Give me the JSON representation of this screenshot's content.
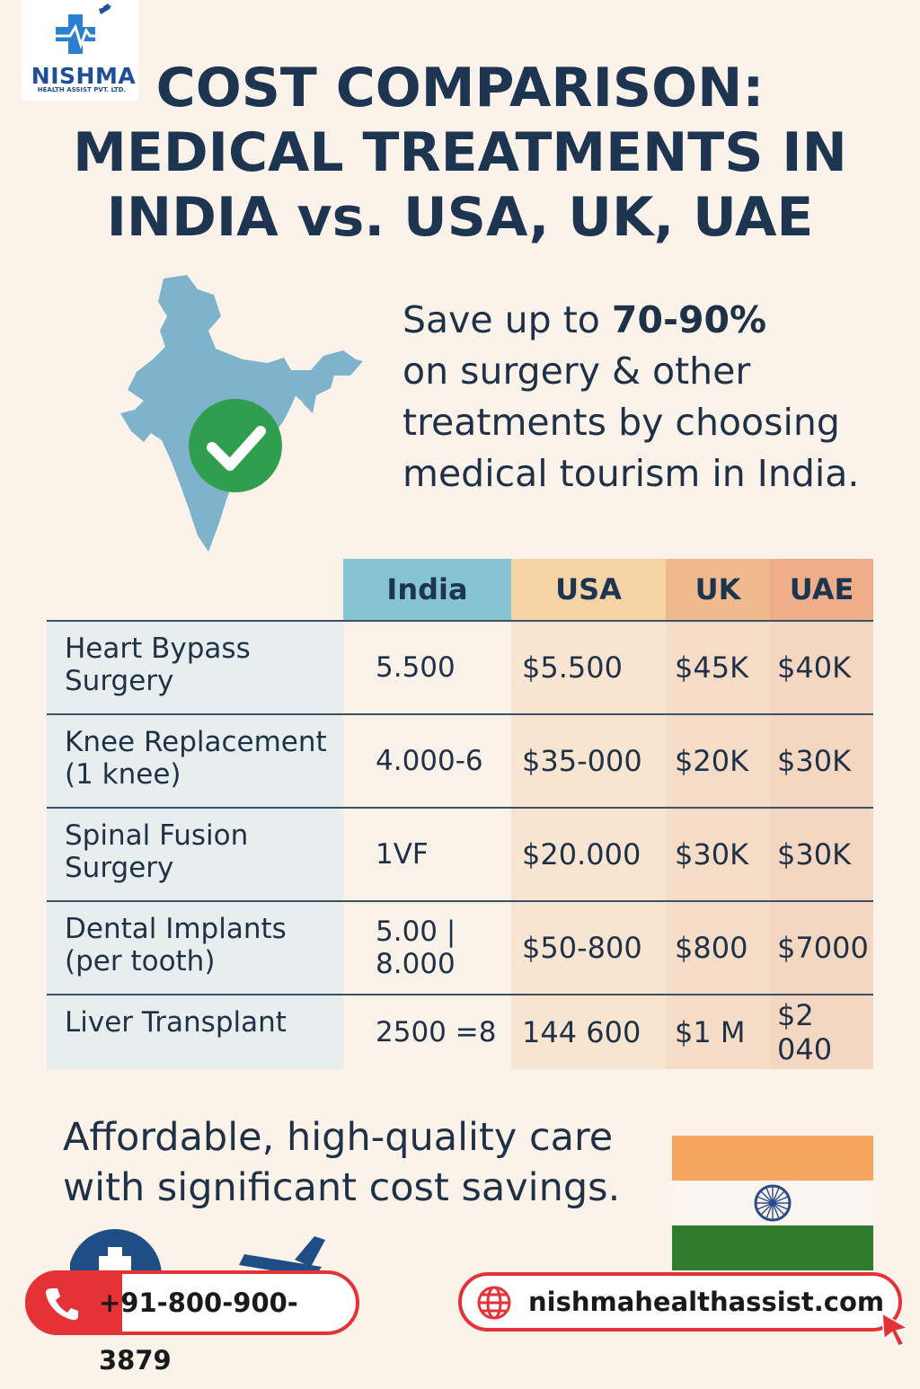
{
  "brand": {
    "name": "NISHMA",
    "subtitle": "HEALTH ASSIST PVT. LTD.",
    "color": "#1f4e9a"
  },
  "title": {
    "line1": "COST COMPARISON:",
    "line2": "MEDICAL TREATMENTS IN",
    "line3": "INDIA vs. USA, UK, UAE"
  },
  "tagline": {
    "prefix": "Save up to ",
    "highlight": "70-90%",
    "line2": "on surgery & other",
    "line3": "treatments by choosing",
    "line4": "medical tourism in India."
  },
  "table": {
    "headers": [
      "India",
      "USA",
      "UK",
      "UAE"
    ],
    "header_colors": [
      "#86c4d4",
      "#f6d3a5",
      "#f1b98e",
      "#eeae8a"
    ],
    "rows": [
      {
        "treatment_line1": "Heart Bypass",
        "treatment_line2": "Surgery",
        "india_line1": "5.500",
        "india_line2": "",
        "usa": "$5.500",
        "uk": "$45K",
        "uae": "$40K"
      },
      {
        "treatment_line1": "Knee Replacement",
        "treatment_line2": "(1 knee)",
        "india_line1": "4.000-6",
        "india_line2": "",
        "usa": "$35-000",
        "uk": "$20K",
        "uae": "$30K"
      },
      {
        "treatment_line1": "Spinal Fusion",
        "treatment_line2": "Surgery",
        "india_line1": "1VF",
        "india_line2": "",
        "usa": "$20.000",
        "uk": "$30K",
        "uae": "$30K"
      },
      {
        "treatment_line1": "Dental Implants",
        "treatment_line2": "(per tooth)",
        "india_line1": "5.00 |",
        "india_line2": "8.000",
        "usa": "$50-800",
        "uk": "$800",
        "uae": "$7000"
      },
      {
        "treatment_line1": "Liver Transplant",
        "treatment_line2": "",
        "india_line1": "2500 =8",
        "india_line2": "",
        "usa": "144 600",
        "uk": "$1 M",
        "uae": "$2 040"
      }
    ]
  },
  "slogan": {
    "line1": "Affordable, high-quality care",
    "line2": "with significant cost savings."
  },
  "contact": {
    "phone": "+91-800-900-3879",
    "website": "nishmahealthassist.com"
  },
  "icons": {
    "logo": "medical-cross-heartbeat-plane-icon",
    "map": "india-map-icon",
    "check": "check-circle-icon",
    "phone": "phone-icon",
    "globe": "globe-icon",
    "cursor": "cursor-arrow-icon",
    "medical": "medical-cross-icon",
    "plane": "airplane-icon",
    "flag": "india-flag-icon"
  },
  "colors": {
    "accent_red": "#e53237",
    "map_blue": "#7fb3cc",
    "check_green": "#2f9e4f",
    "title_navy": "#1d3550"
  }
}
